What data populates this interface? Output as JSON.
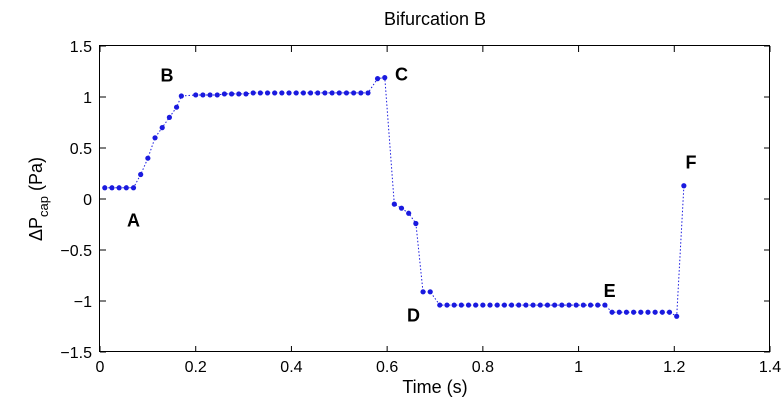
{
  "chart_data": {
    "type": "scatter",
    "title": "Bifurcation B",
    "xlabel": "Time (s)",
    "ylabel": {
      "prefix": "ΔP",
      "subscript": "cap",
      "suffix": " (Pa)"
    },
    "xlim": [
      0,
      1.4
    ],
    "ylim": [
      -1.5,
      1.5
    ],
    "xticks": [
      0,
      0.2,
      0.4,
      0.6,
      0.8,
      1,
      1.2,
      1.4
    ],
    "xtick_labels": [
      "0",
      "0.2",
      "0.4",
      "0.6",
      "0.8",
      "1",
      "1.2",
      "1.4"
    ],
    "yticks": [
      -1.5,
      -1,
      -0.5,
      0,
      0.5,
      1,
      1.5
    ],
    "ytick_labels": [
      "−1.5",
      "−1",
      "−0.5",
      "0",
      "0.5",
      "1",
      "1.5"
    ],
    "grid": false,
    "colors": {
      "series": "#1a1adf",
      "axes": "#000000"
    },
    "series": [
      {
        "marker": "dot",
        "line": "dotted",
        "x": [
          0.01,
          0.025,
          0.04,
          0.055,
          0.07,
          0.085,
          0.1,
          0.115,
          0.13,
          0.145,
          0.16,
          0.17,
          0.2,
          0.215,
          0.23,
          0.245,
          0.26,
          0.275,
          0.29,
          0.305,
          0.32,
          0.335,
          0.35,
          0.365,
          0.38,
          0.395,
          0.41,
          0.425,
          0.44,
          0.455,
          0.47,
          0.485,
          0.5,
          0.515,
          0.53,
          0.545,
          0.56,
          0.58,
          0.595,
          0.615,
          0.63,
          0.645,
          0.66,
          0.675,
          0.69,
          0.71,
          0.725,
          0.74,
          0.755,
          0.77,
          0.785,
          0.8,
          0.815,
          0.83,
          0.845,
          0.86,
          0.875,
          0.89,
          0.905,
          0.92,
          0.935,
          0.95,
          0.965,
          0.98,
          0.995,
          1.01,
          1.025,
          1.04,
          1.055,
          1.07,
          1.085,
          1.1,
          1.115,
          1.13,
          1.145,
          1.16,
          1.175,
          1.19,
          1.205,
          1.22
        ],
        "y": [
          0.11,
          0.11,
          0.11,
          0.11,
          0.11,
          0.24,
          0.4,
          0.6,
          0.7,
          0.8,
          0.9,
          1.01,
          1.02,
          1.02,
          1.02,
          1.02,
          1.03,
          1.03,
          1.03,
          1.03,
          1.04,
          1.04,
          1.04,
          1.04,
          1.04,
          1.04,
          1.04,
          1.04,
          1.04,
          1.04,
          1.04,
          1.04,
          1.04,
          1.04,
          1.04,
          1.04,
          1.04,
          1.18,
          1.19,
          -0.05,
          -0.09,
          -0.14,
          -0.24,
          -0.91,
          -0.91,
          -1.04,
          -1.04,
          -1.04,
          -1.04,
          -1.04,
          -1.04,
          -1.04,
          -1.04,
          -1.04,
          -1.04,
          -1.04,
          -1.04,
          -1.04,
          -1.04,
          -1.04,
          -1.04,
          -1.04,
          -1.04,
          -1.04,
          -1.04,
          -1.04,
          -1.04,
          -1.04,
          -1.04,
          -1.11,
          -1.11,
          -1.11,
          -1.11,
          -1.11,
          -1.11,
          -1.11,
          -1.11,
          -1.11,
          -1.15,
          0.13
        ]
      }
    ],
    "annotations": [
      {
        "text": "A",
        "x": 0.07,
        "y": -0.27
      },
      {
        "text": "B",
        "x": 0.14,
        "y": 1.15
      },
      {
        "text": "C",
        "x": 0.63,
        "y": 1.16
      },
      {
        "text": "D",
        "x": 0.655,
        "y": -1.2
      },
      {
        "text": "E",
        "x": 1.065,
        "y": -0.96
      },
      {
        "text": "F",
        "x": 1.235,
        "y": 0.3
      }
    ]
  }
}
